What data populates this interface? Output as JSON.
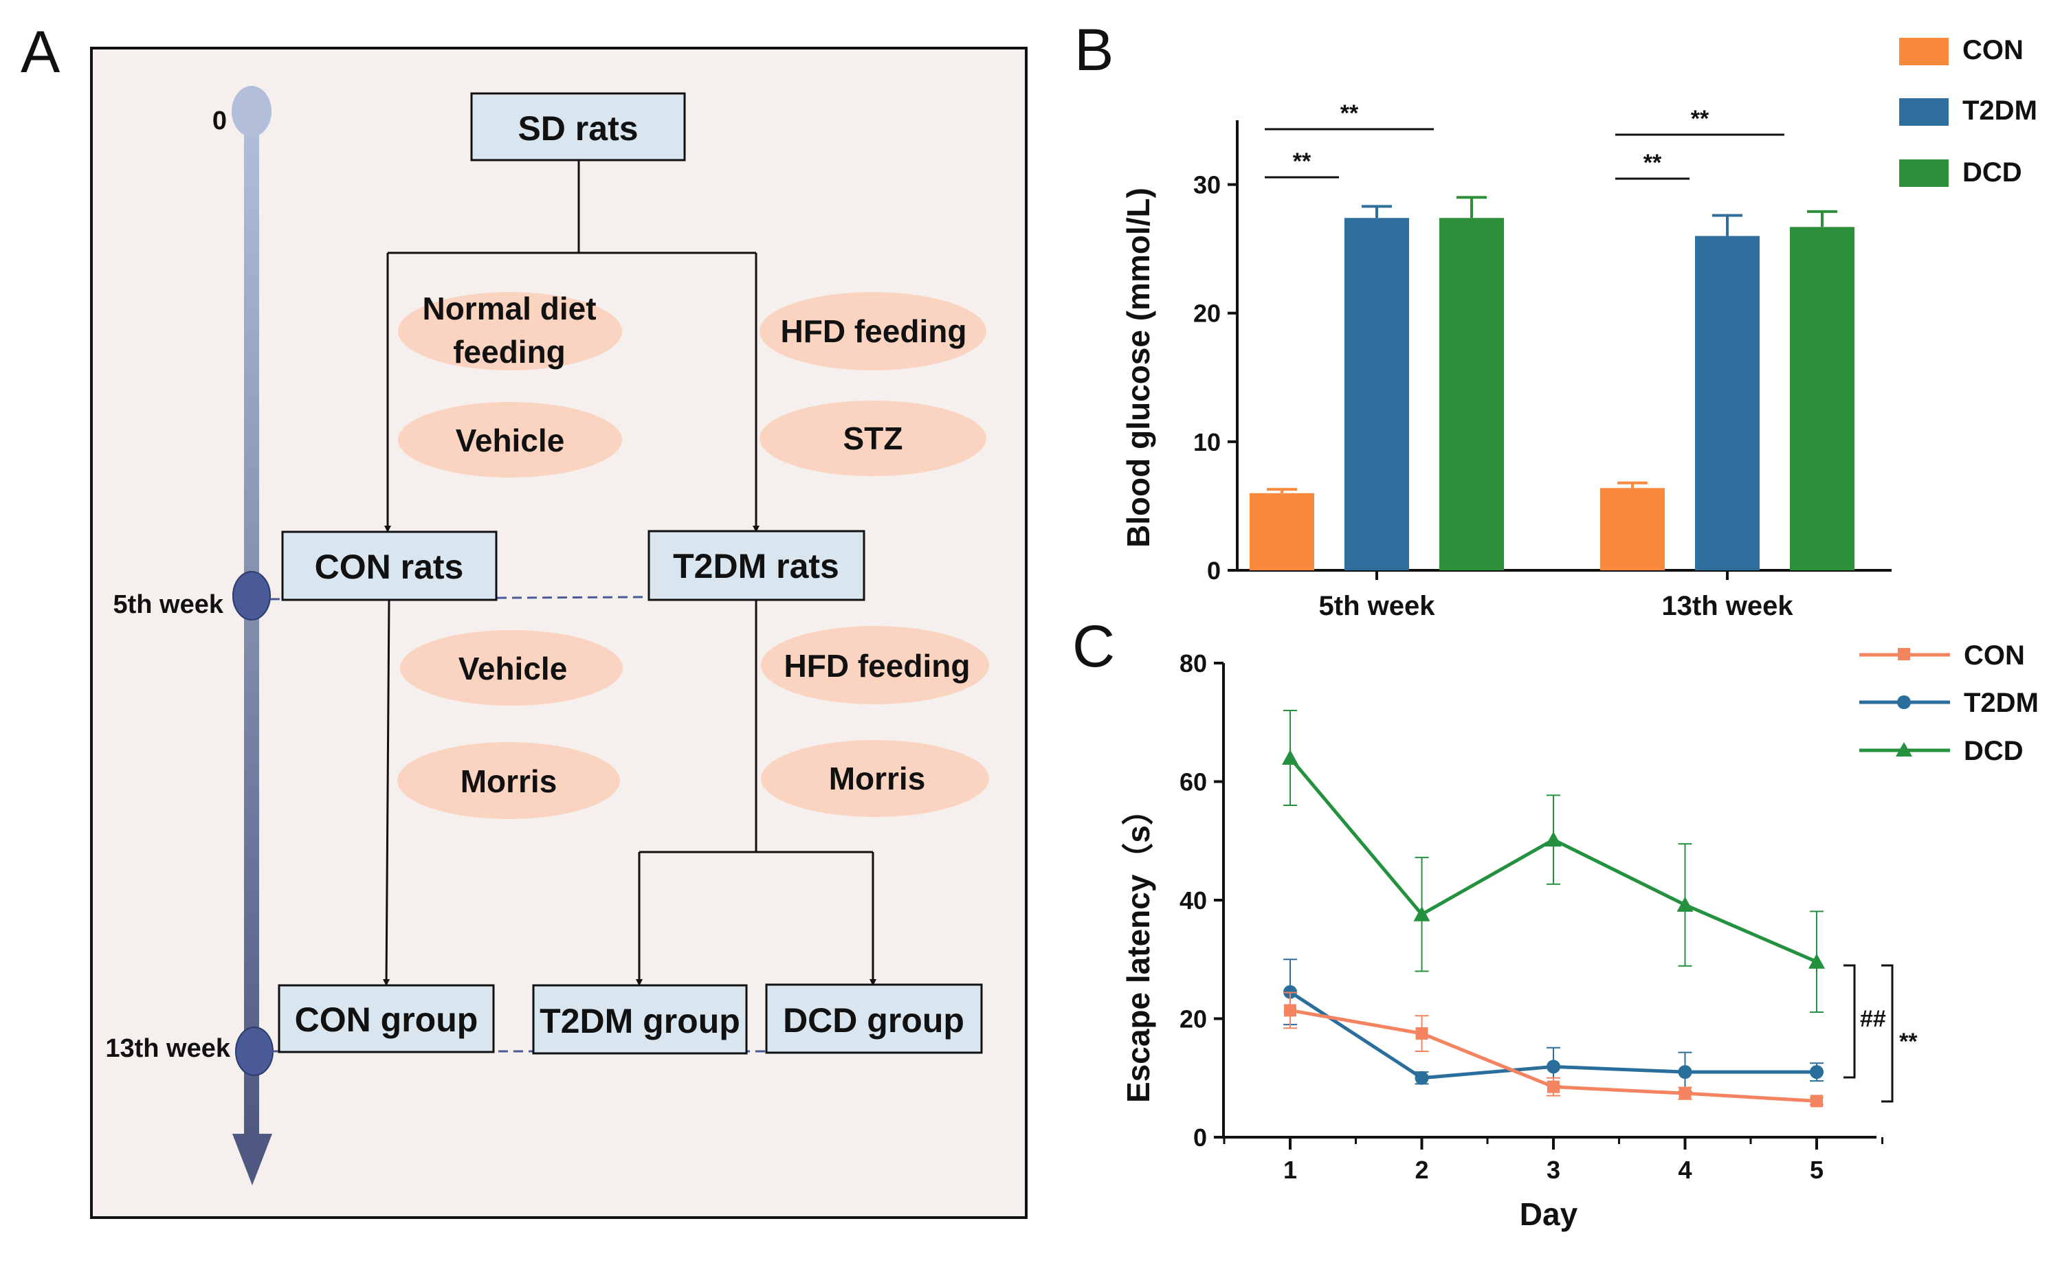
{
  "panel_labels": {
    "a": "A",
    "b": "B",
    "c": "C"
  },
  "colors": {
    "con": "#F98A3D",
    "t2dm": "#2E6F9E",
    "dcd": "#2E8F3A",
    "con_line": "#F4845F",
    "t2dm_line": "#2A6E9B",
    "dcd_line": "#24913F",
    "box_fill": "#D9E5EF",
    "ellipse_fill": "#FAD4C0",
    "panel_bg": "#F5F0EE",
    "timeline_top": "#B3BFDA",
    "timeline_bottom": "#4F5880"
  },
  "flowchart": {
    "timeline": {
      "start": "0",
      "week5": "5th week",
      "week13": "13th week"
    },
    "sd_rats": "SD rats",
    "normal_diet": [
      "Normal diet",
      "feeding"
    ],
    "vehicle_1": "Vehicle",
    "hfd_feeding_1": "HFD feeding",
    "stz": "STZ",
    "con_rats": "CON rats",
    "t2dm_rats": "T2DM rats",
    "vehicle_2": "Vehicle",
    "morris_1": "Morris",
    "hfd_feeding_2": "HFD feeding",
    "morris_2": "Morris",
    "con_group": "CON group",
    "t2dm_group": "T2DM group",
    "dcd_group": "DCD group"
  },
  "chart_data": [
    {
      "type": "bar",
      "panel": "B",
      "title": "",
      "xlabel": "",
      "ylabel": "Blood glucose (mmol/L)",
      "ylim": [
        0,
        35
      ],
      "yticks": [
        0,
        10,
        20,
        30
      ],
      "categories": [
        "5th week",
        "13th week"
      ],
      "series": [
        {
          "name": "CON",
          "values": [
            6.0,
            6.4
          ],
          "errors": [
            0.3,
            0.4
          ]
        },
        {
          "name": "T2DM",
          "values": [
            27.4,
            26.0
          ],
          "errors": [
            0.9,
            1.6
          ]
        },
        {
          "name": "DCD",
          "values": [
            27.4,
            26.7
          ],
          "errors": [
            1.6,
            1.2
          ]
        }
      ],
      "significance": [
        {
          "category": "5th week",
          "from": "CON",
          "to": "T2DM",
          "label": "**"
        },
        {
          "category": "5th week",
          "from": "CON",
          "to": "DCD",
          "label": "**"
        },
        {
          "category": "13th week",
          "from": "CON",
          "to": "T2DM",
          "label": "**"
        },
        {
          "category": "13th week",
          "from": "CON",
          "to": "DCD",
          "label": "**"
        }
      ],
      "legend": [
        "CON",
        "T2DM",
        "DCD"
      ],
      "legend_position": "top-right"
    },
    {
      "type": "line",
      "panel": "C",
      "title": "",
      "xlabel": "Day",
      "ylabel": "Escape latency（s）",
      "x": [
        1,
        2,
        3,
        4,
        5
      ],
      "xlim": [
        0.5,
        5.5
      ],
      "ylim": [
        0,
        80
      ],
      "yticks": [
        0,
        20,
        40,
        60,
        80
      ],
      "series": [
        {
          "name": "CON",
          "marker": "square",
          "values": [
            21.4,
            17.5,
            8.5,
            7.4,
            6.1
          ],
          "errors": [
            3.0,
            3.0,
            1.5,
            1.0,
            0.6
          ]
        },
        {
          "name": "T2DM",
          "marker": "circle",
          "values": [
            24.5,
            10.0,
            11.9,
            11.0,
            11.0
          ],
          "errors": [
            5.5,
            1.0,
            3.2,
            3.3,
            1.5
          ]
        },
        {
          "name": "DCD",
          "marker": "triangle",
          "values": [
            64.0,
            37.6,
            50.2,
            39.2,
            29.6
          ],
          "errors": [
            8.0,
            9.6,
            7.5,
            10.3,
            8.5
          ]
        }
      ],
      "significance": [
        {
          "label": "##",
          "between": [
            "T2DM",
            "DCD"
          ]
        },
        {
          "label": "**",
          "between": [
            "CON",
            "DCD"
          ]
        }
      ],
      "legend": [
        "CON",
        "T2DM",
        "DCD"
      ],
      "legend_position": "top-right"
    }
  ]
}
